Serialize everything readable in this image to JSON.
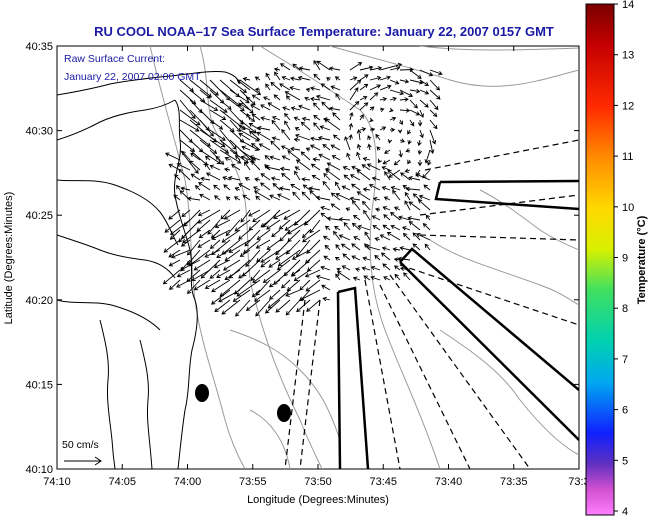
{
  "title": "RU COOL  NOAA–17  Sea Surface Temperature:  January 22, 2007 0157 GMT",
  "overlay": {
    "line1": "Raw Surface Current:",
    "line2": "January 22, 2007 02:00 GMT"
  },
  "scale_label": "50 cm/s",
  "axes": {
    "xlabel": "Longitude (Degrees:Minutes)",
    "ylabel": "Latitude (Degrees:Minutes)",
    "xticks": [
      "74:10",
      "74:05",
      "74:00",
      "73:55",
      "73:50",
      "73:45",
      "73:40",
      "73:35",
      "73:3"
    ],
    "yticks": [
      "40:35",
      "40:30",
      "40:25",
      "40:20",
      "40:15",
      "40:10"
    ]
  },
  "colorbar": {
    "label": "Temperature (°C)",
    "ticks": [
      "14",
      "13",
      "12",
      "11",
      "10",
      "9",
      "8",
      "7",
      "6",
      "5",
      "4"
    ]
  },
  "colors": {
    "title": "#1a1aa6",
    "vectors": "#000000",
    "bathymetry": "#9a9a9a"
  }
}
